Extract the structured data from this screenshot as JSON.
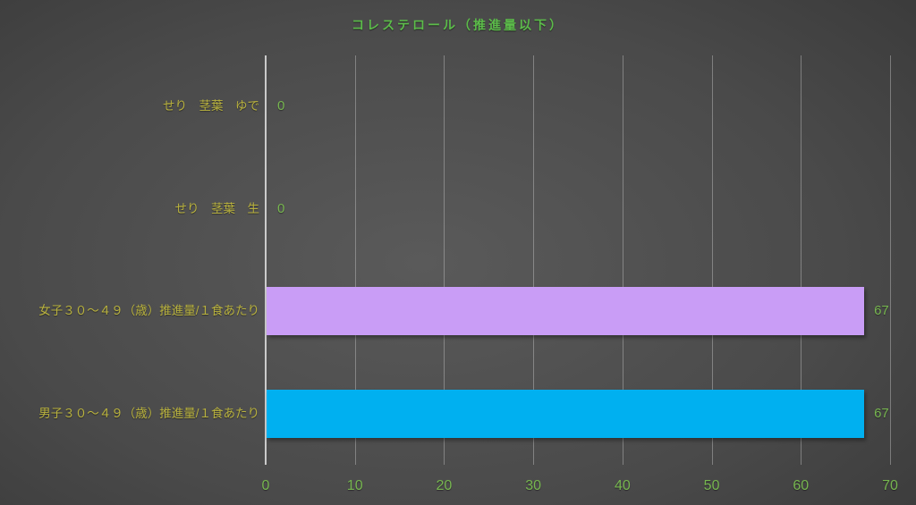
{
  "title": "コレステロール（推進量以下）",
  "colors": {
    "title_text": "#5cbc4a",
    "number_text": "#77b650",
    "category_text": "#b9b23e",
    "axis_line": "#e1e1e1",
    "gridline": "#cdcdcd",
    "background_center": "#5a5a5a",
    "background_edge": "#232323"
  },
  "chart_data": {
    "type": "bar",
    "orientation": "horizontal",
    "title": "コレステロール（推進量以下）",
    "categories": [
      "せり　茎葉　ゆで",
      "せり　茎葉　生",
      "女子３０～４９（歳）推進量/１食あたり",
      "男子３０～４９（歳）推進量/１食あたり"
    ],
    "values": [
      0,
      0,
      67,
      67
    ],
    "data_labels": [
      "0",
      "0",
      "67",
      "67"
    ],
    "bar_colors": [
      null,
      null,
      "#c99df6",
      "#00b0f0"
    ],
    "xlim": [
      0,
      70
    ],
    "xticks": [
      "0",
      "10",
      "20",
      "30",
      "40",
      "50",
      "60",
      "70"
    ],
    "xlabel": "",
    "ylabel": "",
    "grid": true,
    "legend": false
  }
}
